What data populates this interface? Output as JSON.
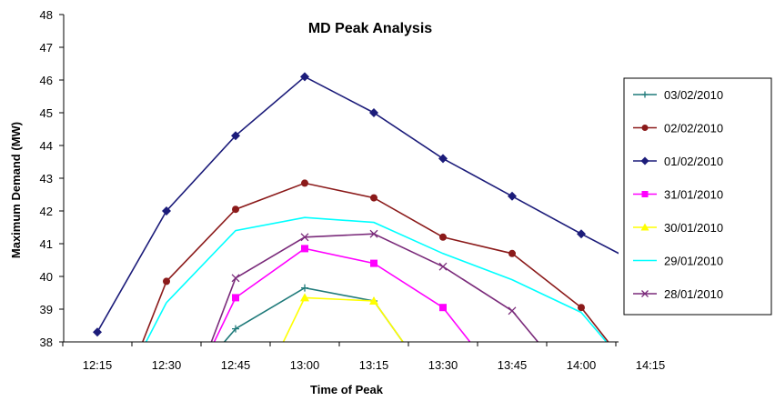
{
  "chart_data": {
    "type": "line",
    "title": "MD Peak Analysis",
    "xlabel": "Time of Peak",
    "ylabel": "Maximum Demand  (MW)",
    "categories": [
      "12:15",
      "12:30",
      "12:45",
      "13:00",
      "13:15",
      "13:30",
      "13:45",
      "14:00",
      "14:15"
    ],
    "ylim": [
      38,
      48
    ],
    "yticks": [
      38,
      39,
      40,
      41,
      42,
      43,
      44,
      45,
      46,
      47,
      48
    ],
    "grid": false,
    "legend_position": "right",
    "series": [
      {
        "name": "03/02/2010",
        "color": "#1f7a7a",
        "marker": "plus",
        "values": [
          null,
          null,
          38.4,
          39.65,
          39.25,
          null,
          null,
          null,
          null
        ]
      },
      {
        "name": "02/02/2010",
        "color": "#8b1a1a",
        "marker": "circle",
        "values": [
          null,
          39.85,
          42.05,
          42.85,
          42.4,
          41.2,
          40.7,
          39.05,
          null
        ]
      },
      {
        "name": "01/02/2010",
        "color": "#1c1c7a",
        "marker": "diamond",
        "values": [
          38.3,
          42.0,
          44.3,
          46.1,
          45.0,
          43.6,
          42.45,
          41.3,
          40.2
        ]
      },
      {
        "name": "31/01/2010",
        "color": "#ff00ff",
        "marker": "square",
        "values": [
          null,
          null,
          39.35,
          40.85,
          40.4,
          39.05,
          null,
          null,
          null
        ]
      },
      {
        "name": "30/01/2010",
        "color": "#ffff00",
        "marker": "triangle",
        "values": [
          null,
          null,
          null,
          39.35,
          39.25,
          null,
          null,
          null,
          null
        ]
      },
      {
        "name": "29/01/2010",
        "color": "#00ffff",
        "marker": "none",
        "values": [
          null,
          39.2,
          41.4,
          41.8,
          41.65,
          40.7,
          39.9,
          38.9,
          null
        ]
      },
      {
        "name": "28/01/2010",
        "color": "#7a2a7a",
        "marker": "x",
        "values": [
          null,
          null,
          39.95,
          41.2,
          41.3,
          40.3,
          38.95,
          null,
          null
        ]
      }
    ]
  }
}
